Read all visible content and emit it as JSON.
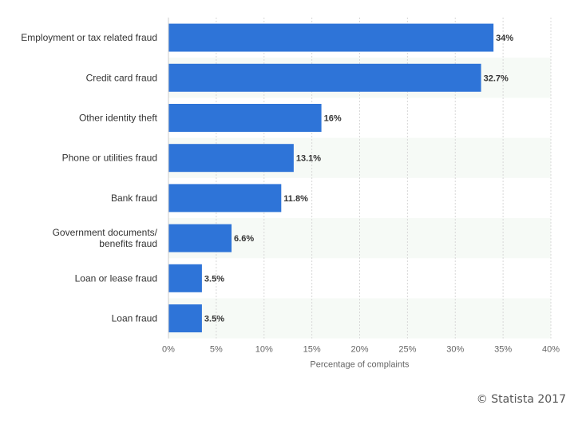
{
  "chart_data": {
    "type": "bar",
    "orientation": "horizontal",
    "categories": [
      "Employment or tax related fraud",
      "Credit card fraud",
      "Other identity theft",
      "Phone or utilities fraud",
      "Bank fraud",
      "Government documents/ benefits fraud",
      "Loan or lease fraud",
      "Loan fraud"
    ],
    "category_lines": [
      [
        "Employment or tax related fraud"
      ],
      [
        "Credit card fraud"
      ],
      [
        "Other identity theft"
      ],
      [
        "Phone or utilities fraud"
      ],
      [
        "Bank fraud"
      ],
      [
        "Government documents/",
        "benefits fraud"
      ],
      [
        "Loan or lease fraud"
      ],
      [
        "Loan fraud"
      ]
    ],
    "values": [
      34,
      32.7,
      16,
      13.1,
      11.8,
      6.6,
      3.5,
      3.5
    ],
    "value_labels": [
      "34%",
      "32.7%",
      "16%",
      "13.1%",
      "11.8%",
      "6.6%",
      "3.5%",
      "3.5%"
    ],
    "xlim": [
      0,
      40
    ],
    "ticks": [
      0,
      5,
      10,
      15,
      20,
      25,
      30,
      35,
      40
    ],
    "tick_labels": [
      "0%",
      "5%",
      "10%",
      "15%",
      "20%",
      "25%",
      "30%",
      "35%",
      "40%"
    ],
    "xlabel": "Percentage of complaints",
    "bar_color": "#2e74d8",
    "band_color": "#f6faf6",
    "grid": true
  },
  "credit": "© Statista 2017"
}
